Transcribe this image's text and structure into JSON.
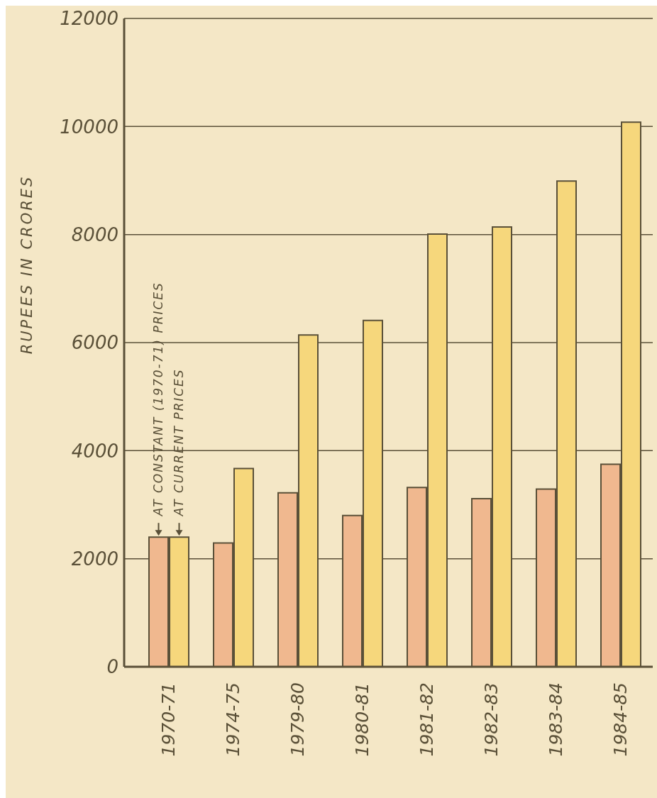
{
  "chart_data": {
    "type": "bar",
    "ylabel": "RUPEES IN CRORES",
    "categories": [
      "1970-71",
      "1974-75",
      "1979-80",
      "1980-81",
      "1981-82",
      "1982-83",
      "1983-84",
      "1984-85"
    ],
    "series": [
      {
        "name": "AT CONSTANT (1970-71) PRICES",
        "color": "#f0b88f",
        "values": [
          2400,
          2290,
          3220,
          2800,
          3320,
          3110,
          3290,
          3750
        ]
      },
      {
        "name": "AT CURRENT PRICES",
        "color": "#f6d77c",
        "values": [
          2400,
          3670,
          6140,
          6410,
          8010,
          8140,
          8990,
          10080
        ]
      }
    ],
    "ylim": [
      0,
      12000
    ],
    "yticks": [
      0,
      2000,
      4000,
      6000,
      8000,
      10000,
      12000
    ],
    "grid": "y",
    "legend": false
  }
}
